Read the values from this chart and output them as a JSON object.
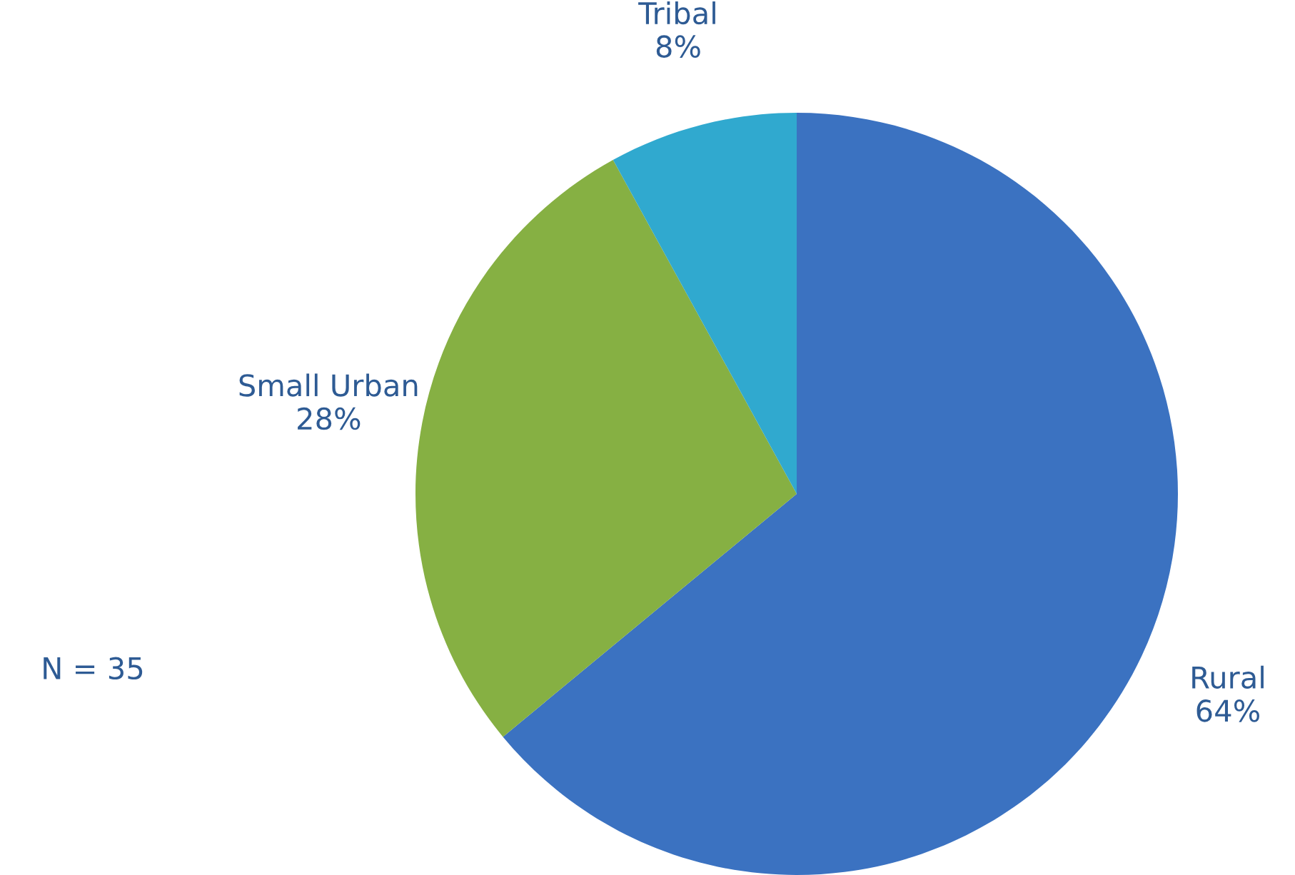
{
  "chart_data": {
    "type": "pie",
    "categories": [
      "Rural",
      "Small Urban",
      "Tribal"
    ],
    "values": [
      64,
      28,
      8
    ],
    "value_labels": [
      "64%",
      "28%",
      "8%"
    ],
    "colors": [
      "#3b72c1",
      "#86b043",
      "#30a9cf"
    ],
    "annotations": [
      "N = 35"
    ],
    "legend": false
  }
}
